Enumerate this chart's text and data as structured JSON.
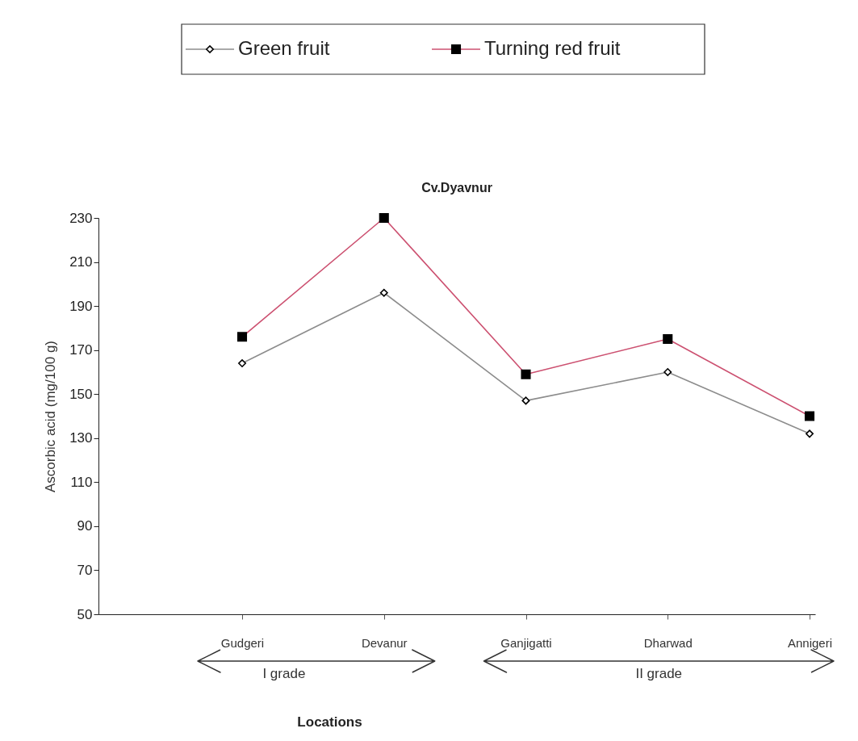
{
  "chart_data": {
    "type": "line",
    "title": "Cv.Dyavnur",
    "xlabel": "Locations",
    "ylabel": "Ascorbic acid (mg/100 g)",
    "categories": [
      "Gudgeri",
      "Devanur",
      "Ganjigatti",
      "Dharwad",
      "Annigeri"
    ],
    "series": [
      {
        "name": "Green fruit",
        "color": "#8c8c8c",
        "marker": "diamond",
        "values": [
          164,
          196,
          147,
          160,
          132
        ]
      },
      {
        "name": "Turning red fruit",
        "color": "#cc5070",
        "marker": "square",
        "values": [
          176,
          230,
          159,
          175,
          140
        ]
      }
    ],
    "ylim": [
      50,
      230
    ],
    "yticks": [
      50,
      70,
      90,
      110,
      130,
      150,
      170,
      190,
      210,
      230
    ],
    "annotations": [
      "I  grade",
      "II  grade"
    ],
    "grid": false,
    "legend": "top",
    "line_style": "solid"
  }
}
